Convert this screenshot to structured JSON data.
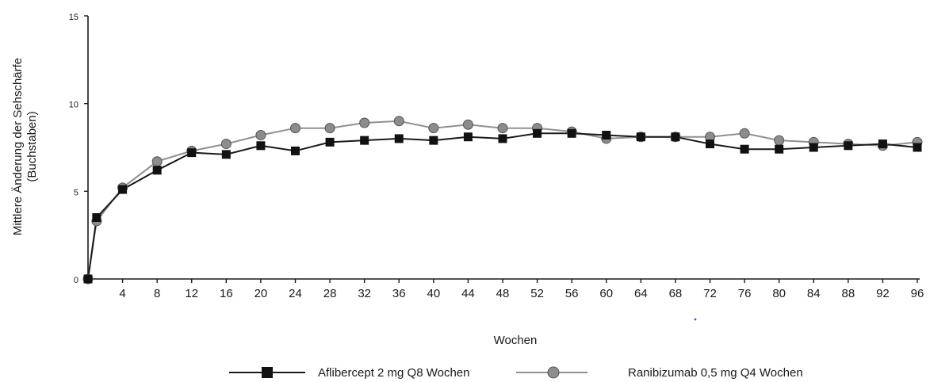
{
  "chart_data": {
    "type": "line",
    "title": "",
    "xlabel": "Wochen",
    "ylabel_lines": [
      "Mittlere Änderung der Sehschärfe",
      "(Buchstaben)"
    ],
    "xlim": [
      0,
      96
    ],
    "ylim": [
      0,
      15
    ],
    "xticks": [
      4,
      8,
      12,
      16,
      20,
      24,
      28,
      32,
      36,
      40,
      44,
      48,
      52,
      56,
      60,
      64,
      68,
      72,
      76,
      80,
      84,
      88,
      92,
      96
    ],
    "yticks": [
      0,
      5,
      10,
      15
    ],
    "grid": false,
    "legend_position": "bottom",
    "series": [
      {
        "name": "Aflibercept 2 mg Q8 Wochen",
        "marker": "square",
        "line_color": "#1a1a1a",
        "marker_color": "#111111",
        "x": [
          0,
          1,
          4,
          8,
          12,
          16,
          20,
          24,
          28,
          32,
          36,
          40,
          44,
          48,
          52,
          56,
          60,
          64,
          68,
          72,
          76,
          80,
          84,
          88,
          92,
          96
        ],
        "y": [
          0,
          3.5,
          5.1,
          6.2,
          7.2,
          7.1,
          7.6,
          7.3,
          7.8,
          7.9,
          8.0,
          7.9,
          8.1,
          8.0,
          8.3,
          8.3,
          8.2,
          8.1,
          8.1,
          7.7,
          7.4,
          7.4,
          7.5,
          7.6,
          7.7,
          7.5
        ]
      },
      {
        "name": "Ranibizumab 0,5 mg Q4 Wochen",
        "marker": "circle",
        "line_color": "#909090",
        "marker_color": "#8c8c8c",
        "x": [
          0,
          1,
          4,
          8,
          12,
          16,
          20,
          24,
          28,
          32,
          36,
          40,
          44,
          48,
          52,
          56,
          60,
          64,
          68,
          72,
          76,
          80,
          84,
          88,
          92,
          96
        ],
        "y": [
          0,
          3.3,
          5.2,
          6.7,
          7.3,
          7.7,
          8.2,
          8.6,
          8.6,
          8.9,
          9.0,
          8.6,
          8.8,
          8.6,
          8.6,
          8.4,
          8.0,
          8.1,
          8.1,
          8.1,
          8.3,
          7.9,
          7.8,
          7.7,
          7.6,
          7.8
        ]
      }
    ]
  }
}
